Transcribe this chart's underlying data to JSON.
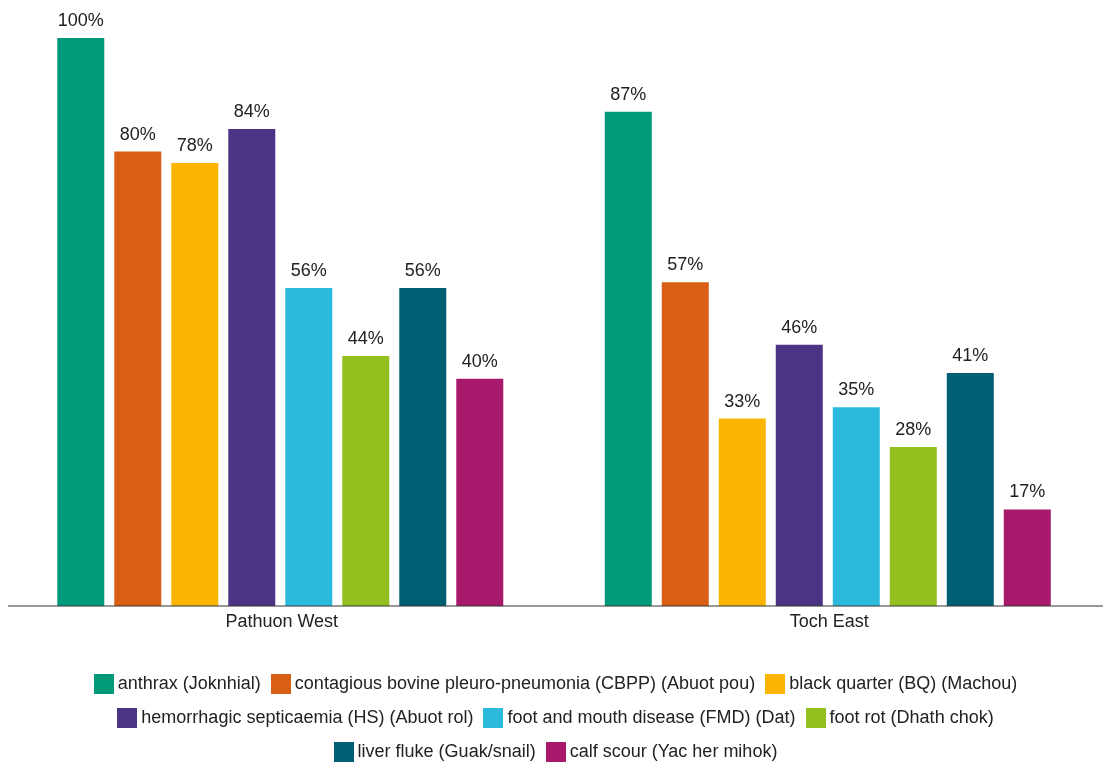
{
  "chart_data": {
    "type": "bar",
    "categories": [
      "Pathuon West",
      "Toch East"
    ],
    "series": [
      {
        "name": "anthrax (Joknhial)",
        "color": "#009a7a",
        "values": [
          100,
          87
        ],
        "value_labels": [
          "100%",
          "87%"
        ]
      },
      {
        "name": "contagious bovine pleuro-pneumonia (CBPP) (Abuot pou)",
        "color": "#d95f14",
        "values": [
          80,
          57
        ],
        "value_labels": [
          "80%",
          "57%"
        ]
      },
      {
        "name": "black quarter (BQ) (Machou)",
        "color": "#fbb500",
        "values": [
          78,
          33
        ],
        "value_labels": [
          "78%",
          "33%"
        ]
      },
      {
        "name": "hemorrhagic septicaemia (HS) (Abuot rol)",
        "color": "#4b3483",
        "values": [
          84,
          46
        ],
        "value_labels": [
          "84%",
          "46%"
        ]
      },
      {
        "name": "foot and mouth disease (FMD) (Dat)",
        "color": "#2bbadb",
        "values": [
          56,
          35
        ],
        "value_labels": [
          "56%",
          "35%"
        ]
      },
      {
        "name": "foot rot (Dhath chok)",
        "color": "#93c01f",
        "values": [
          44,
          28
        ],
        "value_labels": [
          "44%",
          "28%"
        ]
      },
      {
        "name": "liver fluke (Guak/snail)",
        "color": "#005f73",
        "values": [
          56,
          41
        ],
        "value_labels": [
          "56%",
          "41%"
        ]
      },
      {
        "name": "calf scour (Yac her mihok)",
        "color": "#a8186b",
        "values": [
          40,
          17
        ],
        "value_labels": [
          "40%",
          "17%"
        ]
      }
    ],
    "legend": "bottom",
    "grid": false,
    "tick_labels": "x"
  }
}
